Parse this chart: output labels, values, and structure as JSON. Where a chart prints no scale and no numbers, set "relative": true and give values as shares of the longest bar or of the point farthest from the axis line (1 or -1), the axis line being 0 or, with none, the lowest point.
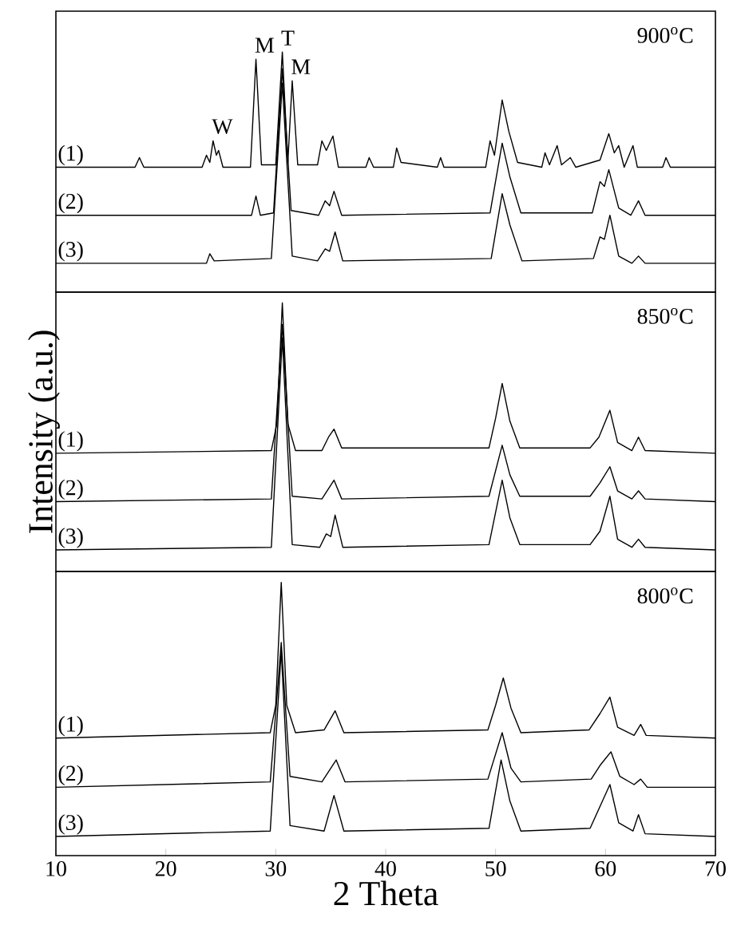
{
  "chart_data": [
    {
      "type": "line",
      "relative": true,
      "xlim": [
        10,
        70
      ],
      "tick_labels": false,
      "color": "#000000",
      "annotations": [
        "900$^{o}$C",
        {
          "text": "W",
          "x": 24.3,
          "y": 0.63
        },
        {
          "text": "M",
          "x": 28.2,
          "y": 0.97
        },
        {
          "text": "T",
          "x": 30.6,
          "y": 1.0
        },
        {
          "text": "M",
          "x": 31.5,
          "y": 0.88
        }
      ],
      "series": [
        {
          "name": "(1)",
          "x": [
            10,
            17.2,
            17.6,
            18,
            23.3,
            23.7,
            24.0,
            24.3,
            24.6,
            24.8,
            25.2,
            27.7,
            28.2,
            28.7,
            30.0,
            30.6,
            31.1,
            31.5,
            32.0,
            33.8,
            34.2,
            34.6,
            35.2,
            35.7,
            38.2,
            38.5,
            38.9,
            40.7,
            41.0,
            41.4,
            44.7,
            45.0,
            45.3,
            49.1,
            49.5,
            49.9,
            50.6,
            51.2,
            52.0,
            54.2,
            54.5,
            54.9,
            55.6,
            56.0,
            56.8,
            57.3,
            59.5,
            60.3,
            60.8,
            61.2,
            61.7,
            62.5,
            62.9,
            65.2,
            65.5,
            65.9,
            70
          ],
          "values": [
            0.52,
            0.52,
            0.56,
            0.52,
            0.52,
            0.57,
            0.54,
            0.63,
            0.57,
            0.59,
            0.52,
            0.52,
            0.97,
            0.53,
            0.53,
            1.0,
            0.54,
            0.88,
            0.53,
            0.53,
            0.63,
            0.59,
            0.65,
            0.52,
            0.52,
            0.56,
            0.52,
            0.52,
            0.6,
            0.54,
            0.52,
            0.56,
            0.52,
            0.52,
            0.63,
            0.57,
            0.8,
            0.67,
            0.54,
            0.52,
            0.58,
            0.53,
            0.61,
            0.53,
            0.56,
            0.52,
            0.55,
            0.66,
            0.58,
            0.61,
            0.52,
            0.61,
            0.52,
            0.52,
            0.56,
            0.52,
            0.52
          ]
        },
        {
          "name": "(2)",
          "x": [
            10,
            27.8,
            28.2,
            28.6,
            29.8,
            30.6,
            31.4,
            33.9,
            34.5,
            34.9,
            35.3,
            36.0,
            49.5,
            50.6,
            51.3,
            52.3,
            58.8,
            59.5,
            59.9,
            60.3,
            61.2,
            62.3,
            63.0,
            63.6,
            70
          ],
          "values": [
            0.32,
            0.32,
            0.4,
            0.32,
            0.33,
            0.93,
            0.34,
            0.32,
            0.38,
            0.36,
            0.42,
            0.32,
            0.33,
            0.62,
            0.48,
            0.33,
            0.33,
            0.46,
            0.44,
            0.51,
            0.35,
            0.32,
            0.38,
            0.32,
            0.32
          ]
        },
        {
          "name": "(3)",
          "x": [
            10,
            23.7,
            24.0,
            24.4,
            29.6,
            30.6,
            31.5,
            33.8,
            34.5,
            34.9,
            35.4,
            36.1,
            49.6,
            50.6,
            51.3,
            52.4,
            58.9,
            59.5,
            59.9,
            60.4,
            61.2,
            62.4,
            63.0,
            63.6,
            70
          ],
          "values": [
            0.12,
            0.12,
            0.16,
            0.13,
            0.14,
            0.87,
            0.15,
            0.13,
            0.18,
            0.17,
            0.25,
            0.13,
            0.14,
            0.41,
            0.28,
            0.13,
            0.14,
            0.23,
            0.22,
            0.32,
            0.15,
            0.12,
            0.15,
            0.12,
            0.12
          ]
        }
      ]
    },
    {
      "type": "line",
      "relative": true,
      "xlim": [
        10,
        70
      ],
      "tick_labels": false,
      "color": "#000000",
      "ylabel": "Intensity (a.u.)",
      "annotations": [
        "850$^{o}$C"
      ],
      "series": [
        {
          "name": "(1)",
          "x": [
            10,
            29.6,
            30.1,
            30.6,
            31.1,
            31.8,
            34.2,
            34.8,
            35.3,
            36.0,
            49.4,
            50.0,
            50.6,
            51.3,
            52.2,
            58.6,
            59.4,
            60.4,
            61.1,
            62.4,
            63.0,
            63.6,
            70
          ],
          "values": [
            0.44,
            0.45,
            0.55,
            1.0,
            0.55,
            0.45,
            0.45,
            0.5,
            0.53,
            0.46,
            0.46,
            0.57,
            0.7,
            0.56,
            0.46,
            0.46,
            0.5,
            0.6,
            0.48,
            0.45,
            0.5,
            0.45,
            0.44
          ]
        },
        {
          "name": "(2)",
          "x": [
            10,
            29.6,
            30.6,
            31.5,
            34.2,
            35.3,
            36.0,
            49.4,
            50.6,
            51.3,
            52.2,
            58.6,
            59.5,
            60.4,
            61.1,
            62.4,
            63.0,
            63.6,
            70
          ],
          "values": [
            0.26,
            0.27,
            0.92,
            0.28,
            0.27,
            0.34,
            0.27,
            0.28,
            0.47,
            0.36,
            0.28,
            0.28,
            0.33,
            0.39,
            0.3,
            0.27,
            0.3,
            0.27,
            0.26
          ]
        },
        {
          "name": "(3)",
          "x": [
            10,
            29.6,
            30.6,
            31.5,
            34.0,
            34.6,
            35.0,
            35.4,
            36.1,
            49.4,
            50.6,
            51.3,
            52.2,
            58.6,
            59.5,
            60.4,
            61.1,
            62.4,
            63.0,
            63.6,
            70
          ],
          "values": [
            0.08,
            0.09,
            0.87,
            0.1,
            0.09,
            0.14,
            0.13,
            0.21,
            0.09,
            0.1,
            0.34,
            0.2,
            0.1,
            0.1,
            0.15,
            0.28,
            0.12,
            0.09,
            0.12,
            0.09,
            0.08
          ]
        }
      ]
    },
    {
      "type": "line",
      "relative": true,
      "xlim": [
        10,
        70
      ],
      "xticks": [
        10,
        20,
        30,
        40,
        50,
        60,
        70
      ],
      "tick_labels": "x",
      "color": "#000000",
      "xlabel": "2 Theta",
      "annotations": [
        "800$^{o}$C"
      ],
      "series": [
        {
          "name": "(1)",
          "x": [
            10,
            29.5,
            30.0,
            30.5,
            31.0,
            31.8,
            34.4,
            35.4,
            36.2,
            49.3,
            50.0,
            50.7,
            51.4,
            52.3,
            58.5,
            59.5,
            60.4,
            61.1,
            62.6,
            63.2,
            63.7,
            70
          ],
          "values": [
            0.43,
            0.45,
            0.55,
            1.0,
            0.55,
            0.45,
            0.46,
            0.53,
            0.45,
            0.46,
            0.55,
            0.65,
            0.54,
            0.45,
            0.46,
            0.52,
            0.58,
            0.47,
            0.44,
            0.48,
            0.44,
            0.43
          ]
        },
        {
          "name": "(2)",
          "x": [
            10,
            29.5,
            30.5,
            31.3,
            34.2,
            35.5,
            36.3,
            49.3,
            50.6,
            51.4,
            52.3,
            58.7,
            59.5,
            60.5,
            61.3,
            62.6,
            63.2,
            63.8,
            70
          ],
          "values": [
            0.25,
            0.27,
            0.78,
            0.29,
            0.27,
            0.35,
            0.27,
            0.28,
            0.45,
            0.32,
            0.27,
            0.28,
            0.33,
            0.38,
            0.29,
            0.26,
            0.28,
            0.25,
            0.25
          ]
        },
        {
          "name": "(3)",
          "x": [
            10,
            29.5,
            30.5,
            31.3,
            34.4,
            35.3,
            36.2,
            49.4,
            50.5,
            51.3,
            52.3,
            58.6,
            59.5,
            60.4,
            61.2,
            62.5,
            63.0,
            63.6,
            70
          ],
          "values": [
            0.07,
            0.09,
            0.75,
            0.11,
            0.09,
            0.22,
            0.09,
            0.1,
            0.35,
            0.2,
            0.09,
            0.1,
            0.18,
            0.26,
            0.12,
            0.09,
            0.15,
            0.08,
            0.07
          ]
        }
      ]
    }
  ]
}
